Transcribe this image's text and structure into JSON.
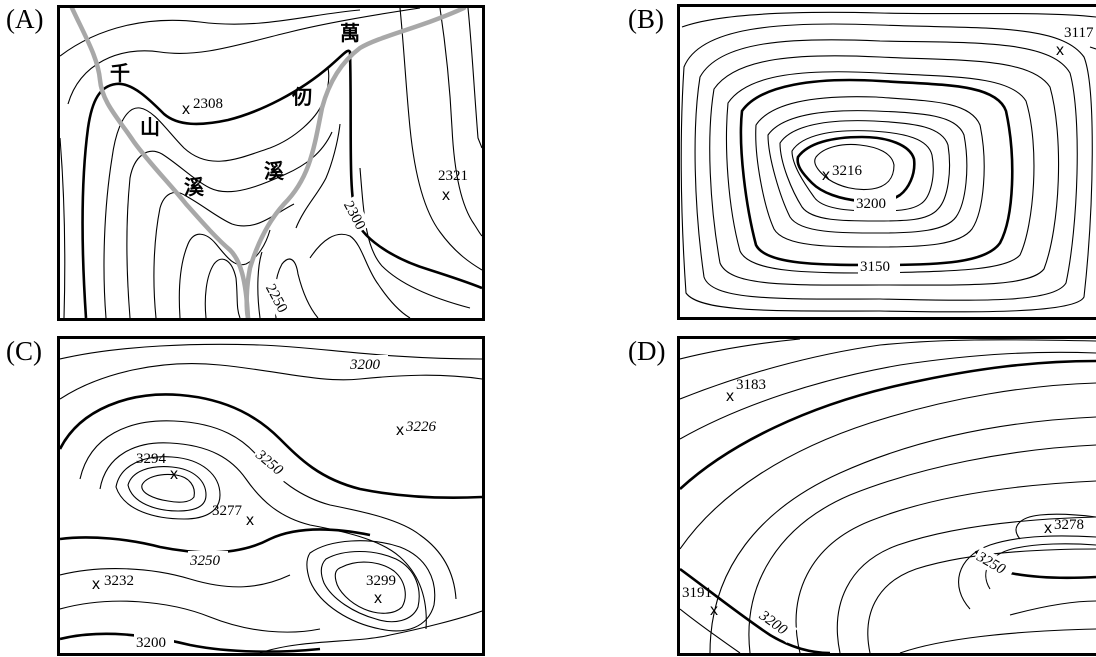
{
  "panels": {
    "a": {
      "label": "(A)",
      "place_chars": [
        "千",
        "山",
        "溪",
        "萬",
        "仞",
        "溪"
      ],
      "spot_heights": [
        "2308",
        "2321"
      ],
      "contour_labels": [
        "2300",
        "2250"
      ],
      "x_mark": "x"
    },
    "b": {
      "label": "(B)",
      "spot_heights": [
        "3117",
        "3216"
      ],
      "contour_labels": [
        "3200",
        "3150"
      ],
      "x_mark": "x"
    },
    "c": {
      "label": "(C)",
      "spot_heights": [
        "3294",
        "3226",
        "3277",
        "3232",
        "3299"
      ],
      "contour_labels": [
        "3200",
        "3250",
        "3250",
        "3200"
      ],
      "x_mark": "x"
    },
    "d": {
      "label": "(D)",
      "spot_heights": [
        "3183",
        "3278",
        "3191"
      ],
      "contour_labels": [
        "3250",
        "3200"
      ],
      "x_mark": "x"
    }
  },
  "colors": {
    "contour": "#000000",
    "trail": "#a8a8a8",
    "frame": "#000000"
  }
}
